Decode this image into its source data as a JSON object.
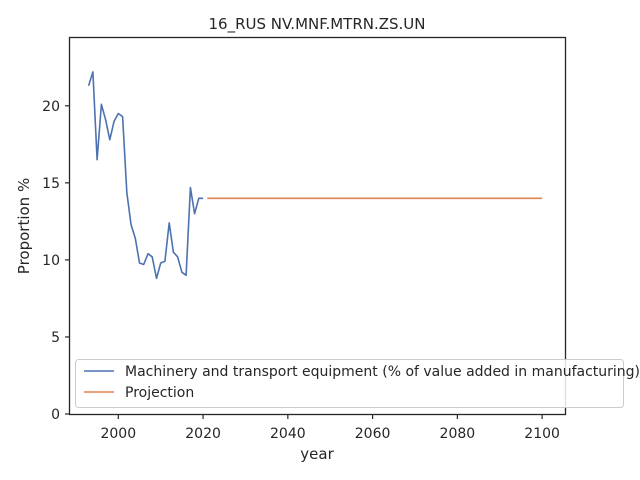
{
  "chart_data": {
    "type": "line",
    "title": "16_RUS NV.MNF.MTRN.ZS.UN",
    "xlabel": "year",
    "ylabel": "Proportion %",
    "xlim": [
      1988.6,
      2105.4
    ],
    "ylim": [
      0,
      24.4
    ],
    "xticks": [
      2000,
      2020,
      2040,
      2060,
      2080,
      2100
    ],
    "yticks": [
      0,
      5,
      10,
      15,
      20
    ],
    "grid": false,
    "legend_position": "lower-right",
    "series": [
      {
        "name": "Machinery and transport equipment (% of value added in manufacturing)",
        "color": "#4c72b0",
        "x": [
          1993,
          1994,
          1995,
          1996,
          1997,
          1998,
          1999,
          2000,
          2001,
          2002,
          2003,
          2004,
          2005,
          2006,
          2007,
          2008,
          2009,
          2010,
          2011,
          2012,
          2013,
          2014,
          2015,
          2016,
          2017,
          2018,
          2019,
          2020
        ],
        "y": [
          21.3,
          22.2,
          16.5,
          20.1,
          19.1,
          17.8,
          19.0,
          19.5,
          19.3,
          14.4,
          12.3,
          11.4,
          9.8,
          9.7,
          10.4,
          10.2,
          8.8,
          9.8,
          9.9,
          12.4,
          10.5,
          10.2,
          9.2,
          9.0,
          14.7,
          13.0,
          14.0,
          14.0
        ]
      },
      {
        "name": "Projection",
        "color": "#dd8452",
        "x": [
          2021,
          2100
        ],
        "y": [
          14.0,
          14.0
        ]
      }
    ]
  }
}
